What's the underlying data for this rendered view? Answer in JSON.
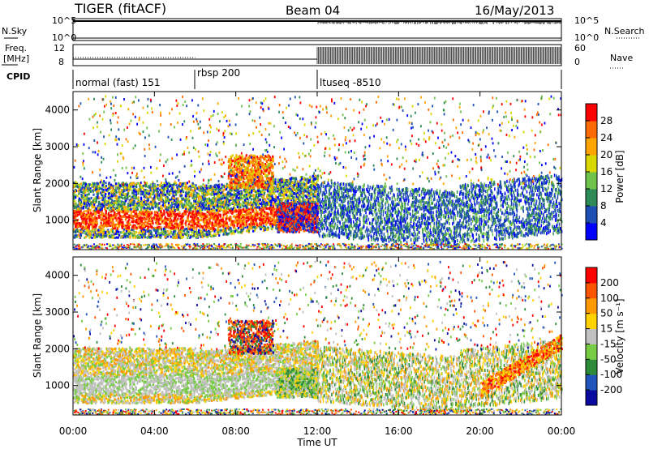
{
  "header": {
    "station": "TIGER (fitACF)",
    "beam": "Beam 04",
    "date": "16/May/2013"
  },
  "chart_data": [
    {
      "type": "line",
      "name_label": "N.Sky",
      "right_label": "N.Search",
      "yticks_left": [
        "10^5",
        "10^0"
      ],
      "yticks_right": [
        "10^5",
        "10^0"
      ]
    },
    {
      "type": "line",
      "name_label": "Freq. [MHz]",
      "right_label": "Nave",
      "yticks_left": [
        "12",
        "8"
      ],
      "yticks_right": [
        "60",
        "0"
      ],
      "cpid_label": "CPID",
      "segments": [
        {
          "label": "normal (fast) 151",
          "start": 0,
          "end": 6
        },
        {
          "label": "rbsp 200",
          "start": 6,
          "end": 12
        },
        {
          "label": "ltuseq -8510",
          "start": 12,
          "end": 24
        }
      ]
    },
    {
      "type": "heatmap",
      "ylabel": "Slant Range [km]",
      "yticks": [
        1000,
        2000,
        3000,
        4000
      ],
      "ylim": [
        200,
        4500
      ],
      "colorbar_label": "Power [dB]",
      "colorbar_ticks": [
        "28",
        "24",
        "20",
        "16",
        "12",
        "8",
        "4"
      ],
      "colors": [
        "#0000ff",
        "#1e4fb4",
        "#2e8b57",
        "#6fc24a",
        "#d8d800",
        "#ffa500",
        "#ff6a00",
        "#ff0000"
      ]
    },
    {
      "type": "heatmap",
      "ylabel": "Slant Range [km]",
      "yticks": [
        1000,
        2000,
        3000,
        4000
      ],
      "ylim": [
        200,
        4500
      ],
      "colorbar_label": "Velocity [m s⁻¹]",
      "colorbar_ticks": [
        "200",
        "100",
        "50",
        "15",
        "-15",
        "-50",
        "-100",
        "-200"
      ],
      "colors": [
        "#0a0aa0",
        "#2255bb",
        "#2e8b3a",
        "#77cc44",
        "#c0c0c0",
        "#ffd200",
        "#ff9900",
        "#ff5500",
        "#ff0000"
      ]
    }
  ],
  "x_axis": {
    "label": "Time UT",
    "ticks": [
      "00:00",
      "04:00",
      "08:00",
      "12:00",
      "16:00",
      "20:00",
      "00:00"
    ],
    "xlim": [
      0,
      24
    ]
  }
}
